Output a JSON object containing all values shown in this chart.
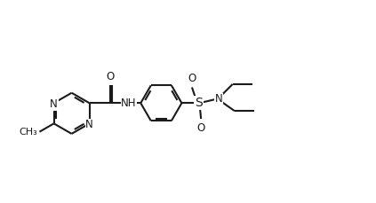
{
  "bg_color": "#ffffff",
  "line_color": "#1a1a1a",
  "line_width": 1.5,
  "font_size": 8.5,
  "figsize": [
    4.23,
    2.29
  ],
  "dpi": 100,
  "xlim": [
    -0.5,
    9.0
  ],
  "ylim": [
    -0.2,
    4.8
  ]
}
